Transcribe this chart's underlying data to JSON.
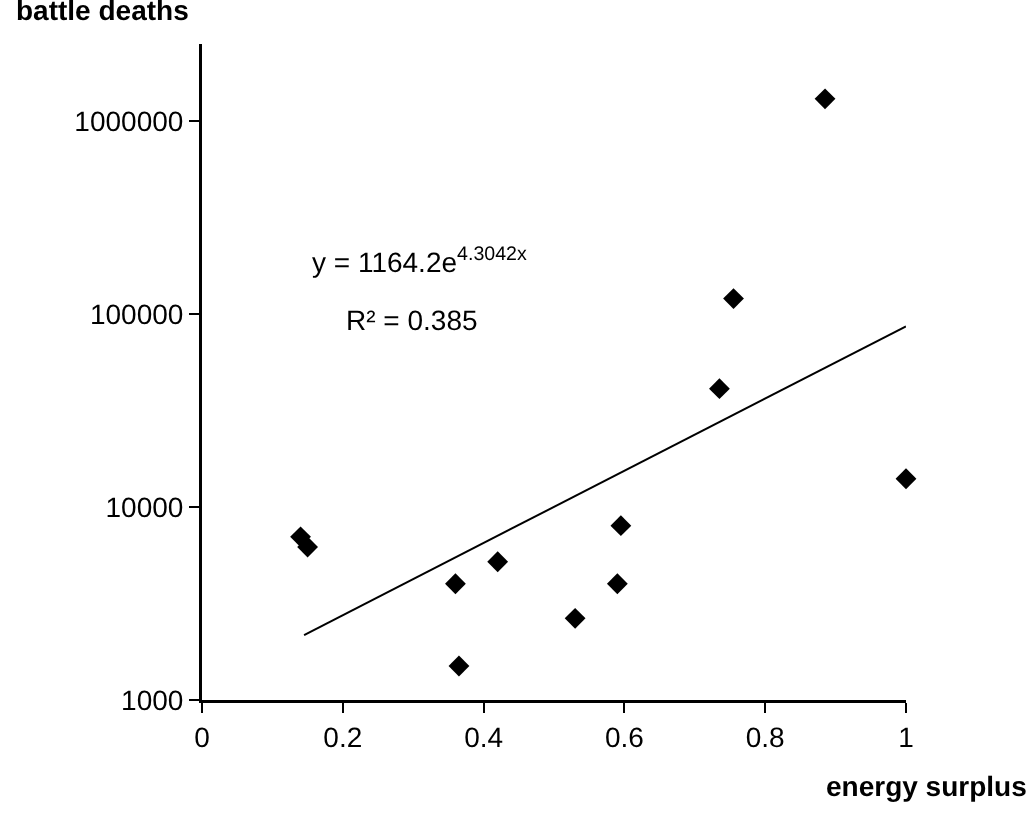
{
  "chart_data": {
    "type": "scatter",
    "xlabel": "energy surplus",
    "ylabel": "battle deaths",
    "series": [
      {
        "color": "#000000",
        "marker": "diamond",
        "x": [
          0.14,
          0.15,
          0.36,
          0.365,
          0.42,
          0.53,
          0.59,
          0.595,
          0.735,
          0.755,
          0.885,
          1.0
        ],
        "values": [
          7000,
          6200,
          4000,
          1500,
          5200,
          2650,
          4000,
          8000,
          41000,
          120000,
          1300000,
          14000
        ]
      },
      {
        "type": "line",
        "color": "#000000",
        "marker": "none",
        "line_style": "solid",
        "x": [
          0.145,
          1.0
        ],
        "values": [
          2170,
          86150
        ]
      }
    ],
    "annotations": [
      "y = 1164.2e$^{4.3042x}$",
      "R² = 0.385"
    ],
    "xlim": [
      0,
      1
    ],
    "xticks": [
      0,
      0.2,
      0.4,
      0.6,
      0.8,
      1
    ],
    "ylim": [
      1000,
      2500000
    ],
    "yticks": [
      1000,
      10000,
      100000,
      1000000
    ],
    "log": "y",
    "grid": false
  }
}
